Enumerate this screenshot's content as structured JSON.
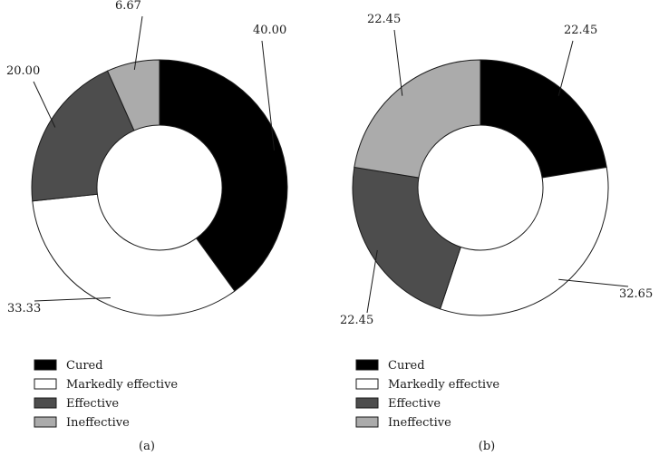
{
  "chart_data": [
    {
      "type": "pie",
      "subtype": "donut",
      "caption": "(a)",
      "categories": [
        "Cured",
        "Markedly effective",
        "Effective",
        "Ineffective"
      ],
      "values": [
        40.0,
        33.33,
        20.0,
        6.67
      ],
      "labels": [
        "40.00",
        "33.33",
        "20.00",
        "6.67"
      ],
      "legend": [
        "Cured",
        "Markedly effective",
        "Effective",
        "Ineffective"
      ],
      "colors": [
        "#000000",
        "#ffffff",
        "#4d4d4d",
        "#ababab"
      ]
    },
    {
      "type": "pie",
      "subtype": "donut",
      "caption": "(b)",
      "categories": [
        "Cured",
        "Markedly effective",
        "Effective",
        "Ineffective"
      ],
      "values": [
        22.45,
        32.65,
        22.45,
        22.45
      ],
      "labels": [
        "22.45",
        "32.65",
        "22.45",
        "22.45"
      ],
      "legend": [
        "Cured",
        "Markedly effective",
        "Effective",
        "Ineffective"
      ],
      "colors": [
        "#000000",
        "#ffffff",
        "#4d4d4d",
        "#ababab"
      ]
    }
  ]
}
